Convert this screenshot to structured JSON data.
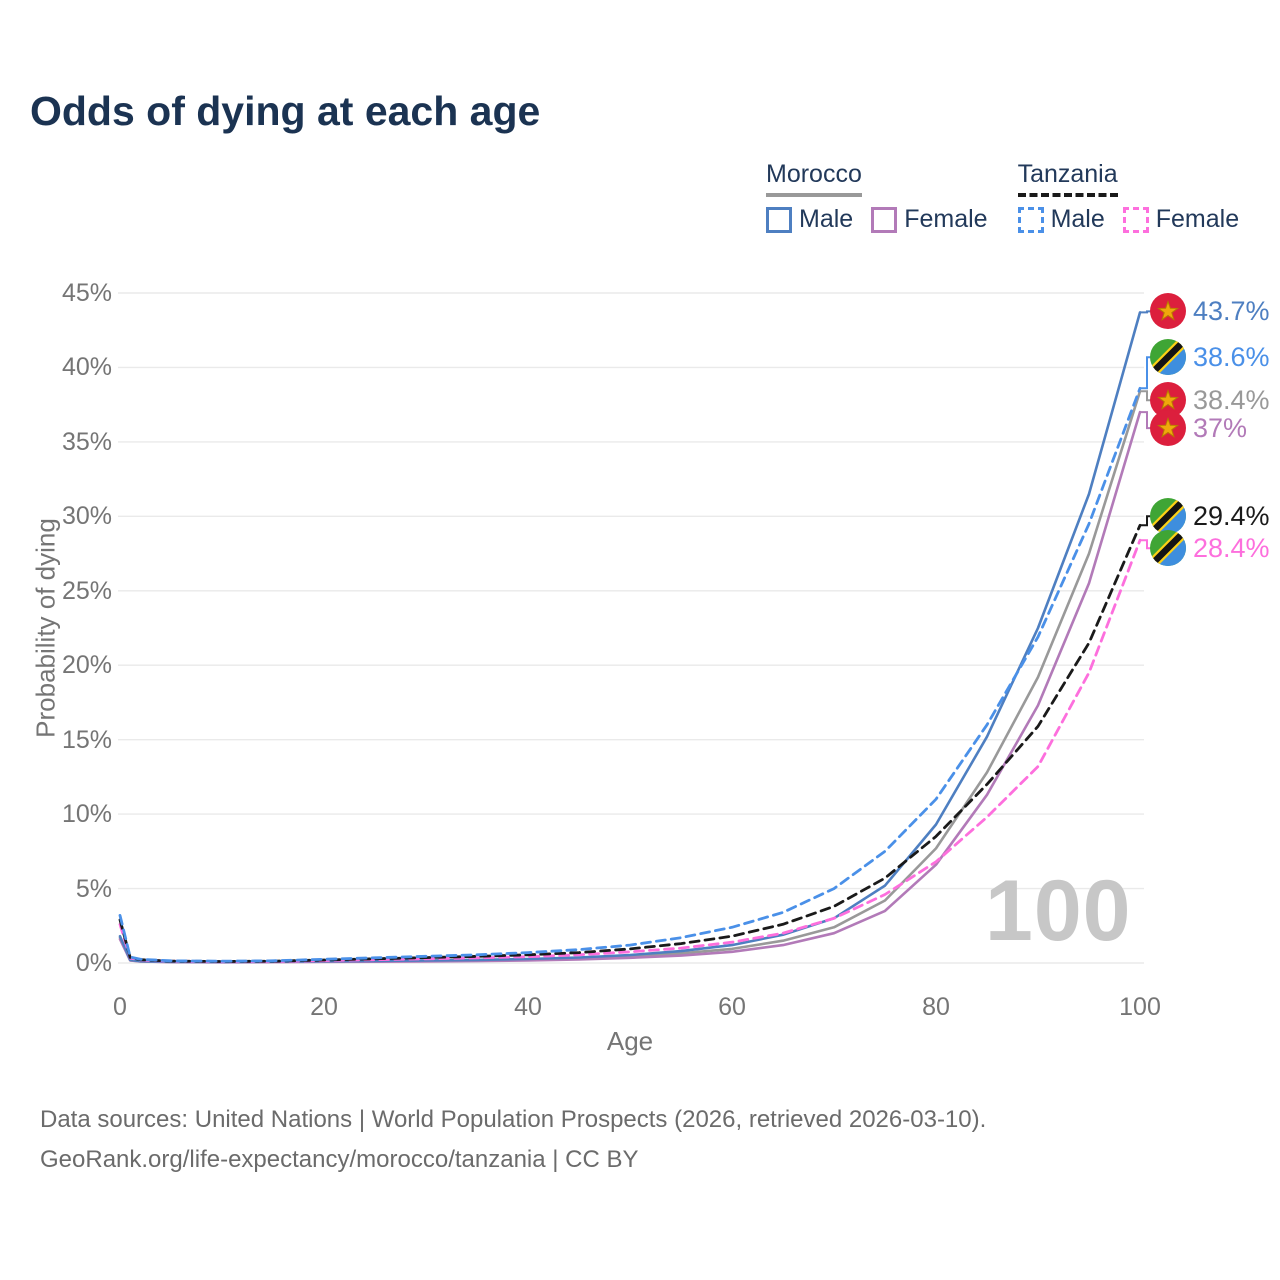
{
  "title": "Odds of dying at each age",
  "watermark": "100",
  "legend": {
    "groups": [
      {
        "label": "Morocco",
        "line_style": "solid",
        "underline_color": "#999999",
        "items": [
          {
            "label": "Male",
            "color": "#4e7fc1",
            "dashed": false
          },
          {
            "label": "Female",
            "color": "#b27ab8",
            "dashed": false
          }
        ]
      },
      {
        "label": "Tanzania",
        "line_style": "dashed",
        "underline_color": "#1a1a1a",
        "items": [
          {
            "label": "Male",
            "color": "#4a90e8",
            "dashed": true
          },
          {
            "label": "Female",
            "color": "#fd6fdd",
            "dashed": true
          }
        ]
      }
    ]
  },
  "chart_data": {
    "type": "line",
    "title": "Odds of dying at each age",
    "xlabel": "Age",
    "ylabel": "Probability of dying",
    "xlim": [
      0,
      100
    ],
    "ylim": [
      0,
      45
    ],
    "x_ticks": [
      0,
      20,
      40,
      60,
      80,
      100
    ],
    "y_ticks": [
      0,
      5,
      10,
      15,
      20,
      25,
      30,
      35,
      40,
      45
    ],
    "y_tick_suffix": "%",
    "grid": "horizontal",
    "x": [
      0,
      1,
      2,
      5,
      10,
      15,
      20,
      25,
      30,
      35,
      40,
      45,
      50,
      55,
      60,
      65,
      70,
      75,
      80,
      85,
      90,
      95,
      100
    ],
    "series": [
      {
        "name": "Morocco male",
        "country": "Morocco",
        "sex": "Male",
        "flag": "morocco",
        "color": "#4e7fc1",
        "dashed": false,
        "end_label": "43.7%",
        "values": [
          1.8,
          0.2,
          0.12,
          0.08,
          0.07,
          0.09,
          0.12,
          0.14,
          0.17,
          0.21,
          0.27,
          0.37,
          0.54,
          0.8,
          1.2,
          1.9,
          3.0,
          5.2,
          9.3,
          15.2,
          22.5,
          31.5,
          43.7
        ]
      },
      {
        "name": "Tanzania male",
        "country": "Tanzania",
        "sex": "Male",
        "flag": "tanzania",
        "color": "#4a90e8",
        "dashed": true,
        "end_label": "38.6%",
        "values": [
          3.2,
          0.4,
          0.25,
          0.15,
          0.12,
          0.15,
          0.25,
          0.35,
          0.45,
          0.55,
          0.7,
          0.9,
          1.2,
          1.7,
          2.4,
          3.4,
          5.0,
          7.5,
          11.0,
          16.0,
          21.9,
          29.5,
          38.6
        ]
      },
      {
        "name": "Morocco both sexes",
        "country": "Morocco",
        "sex": "Both",
        "flag": "morocco",
        "color": "#999999",
        "dashed": false,
        "end_label": "38.4%",
        "values": [
          1.7,
          0.18,
          0.11,
          0.07,
          0.06,
          0.08,
          0.1,
          0.12,
          0.14,
          0.17,
          0.22,
          0.3,
          0.44,
          0.65,
          0.95,
          1.5,
          2.4,
          4.2,
          7.7,
          12.8,
          19.2,
          27.5,
          38.4
        ]
      },
      {
        "name": "Morocco female",
        "country": "Morocco",
        "sex": "Female",
        "flag": "morocco",
        "color": "#b27ab8",
        "dashed": false,
        "end_label": "37%",
        "values": [
          1.6,
          0.17,
          0.1,
          0.06,
          0.05,
          0.06,
          0.08,
          0.09,
          0.11,
          0.13,
          0.17,
          0.24,
          0.35,
          0.5,
          0.75,
          1.2,
          2.0,
          3.5,
          6.6,
          11.3,
          17.3,
          25.5,
          37.0
        ]
      },
      {
        "name": "Tanzania both sexes",
        "country": "Tanzania",
        "sex": "Both",
        "flag": "tanzania",
        "color": "#1a1a1a",
        "dashed": true,
        "end_label": "29.4%",
        "values": [
          2.9,
          0.36,
          0.22,
          0.13,
          0.1,
          0.12,
          0.2,
          0.28,
          0.36,
          0.44,
          0.55,
          0.7,
          0.95,
          1.3,
          1.8,
          2.6,
          3.8,
          5.7,
          8.5,
          12.0,
          15.9,
          21.5,
          29.4
        ]
      },
      {
        "name": "Tanzania female",
        "country": "Tanzania",
        "sex": "Female",
        "flag": "tanzania",
        "color": "#fd6fdd",
        "dashed": true,
        "end_label": "28.4%",
        "values": [
          2.6,
          0.33,
          0.2,
          0.12,
          0.09,
          0.1,
          0.16,
          0.22,
          0.28,
          0.34,
          0.42,
          0.55,
          0.75,
          1.0,
          1.4,
          2.0,
          3.0,
          4.6,
          6.8,
          9.8,
          13.2,
          19.5,
          28.4
        ]
      }
    ]
  },
  "footer": {
    "line1": "Data sources: United Nations | World Population Prospects (2026, retrieved 2026-03-10).",
    "line2": "GeoRank.org/life-expectancy/morocco/tanzania | CC BY"
  }
}
